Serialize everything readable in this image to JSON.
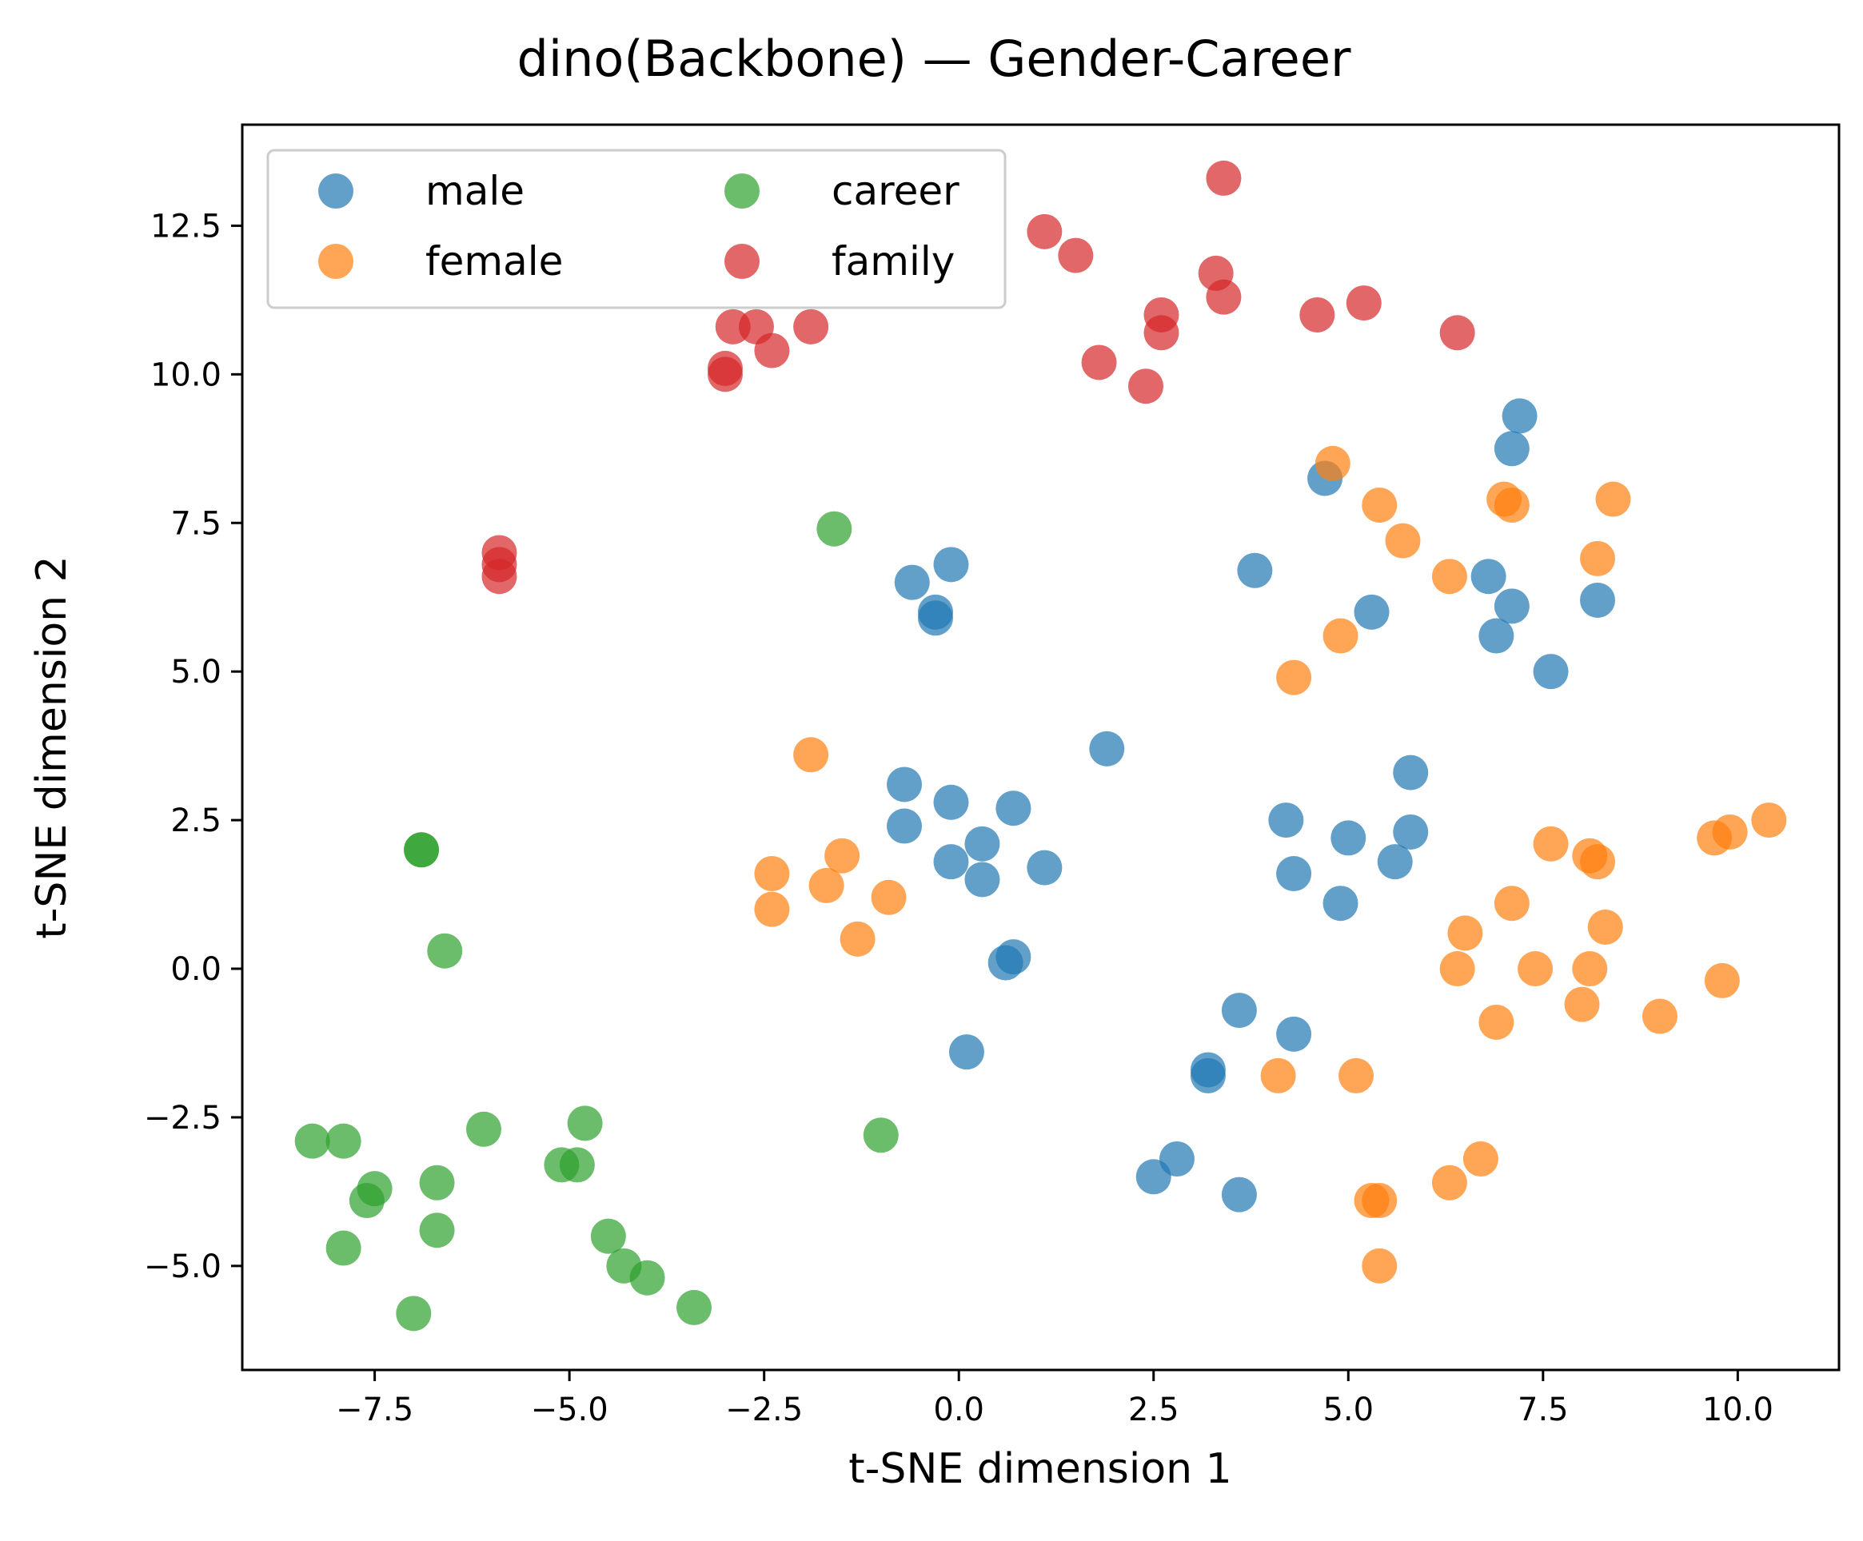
{
  "chart_data": {
    "type": "scatter",
    "title": "dino(Backbone) — Gender-Career",
    "xlabel": "t-SNE dimension 1",
    "ylabel": "t-SNE dimension 2",
    "xlim": [
      -9.2,
      11.3
    ],
    "ylim": [
      -6.75,
      14.2
    ],
    "xticks": [
      -7.5,
      -5.0,
      -2.5,
      0.0,
      2.5,
      5.0,
      7.5,
      10.0
    ],
    "xtick_labels": [
      "−7.5",
      "−5.0",
      "−2.5",
      "0.0",
      "2.5",
      "5.0",
      "7.5",
      "10.0"
    ],
    "yticks": [
      -5.0,
      -2.5,
      0.0,
      2.5,
      5.0,
      7.5,
      10.0,
      12.5
    ],
    "ytick_labels": [
      "−5.0",
      "−2.5",
      "0.0",
      "2.5",
      "5.0",
      "7.5",
      "10.0",
      "12.5"
    ],
    "grid": false,
    "legend": {
      "position": "top-left",
      "columns": 2
    },
    "series": [
      {
        "name": "male",
        "color": "#1f77b4",
        "points": [
          [
            7.2,
            9.3
          ],
          [
            7.1,
            8.75
          ],
          [
            4.7,
            8.25
          ],
          [
            -0.1,
            6.8
          ],
          [
            -0.6,
            6.5
          ],
          [
            -0.3,
            6.0
          ],
          [
            -0.3,
            5.9
          ],
          [
            3.8,
            6.7
          ],
          [
            5.3,
            6.0
          ],
          [
            6.8,
            6.6
          ],
          [
            7.1,
            6.1
          ],
          [
            6.9,
            5.6
          ],
          [
            8.2,
            6.2
          ],
          [
            7.6,
            5.0
          ],
          [
            1.9,
            3.7
          ],
          [
            5.8,
            3.3
          ],
          [
            -0.7,
            3.1
          ],
          [
            -0.1,
            2.8
          ],
          [
            0.7,
            2.7
          ],
          [
            -0.7,
            2.4
          ],
          [
            0.3,
            2.1
          ],
          [
            -0.1,
            1.8
          ],
          [
            0.3,
            1.5
          ],
          [
            1.1,
            1.7
          ],
          [
            4.2,
            2.5
          ],
          [
            5.0,
            2.2
          ],
          [
            5.8,
            2.3
          ],
          [
            5.6,
            1.8
          ],
          [
            4.3,
            1.6
          ],
          [
            4.9,
            1.1
          ],
          [
            0.7,
            0.2
          ],
          [
            0.6,
            0.1
          ],
          [
            0.1,
            -1.4
          ],
          [
            3.6,
            -0.7
          ],
          [
            4.3,
            -1.1
          ],
          [
            3.2,
            -1.7
          ],
          [
            3.2,
            -1.8
          ],
          [
            2.8,
            -3.2
          ],
          [
            2.5,
            -3.5
          ],
          [
            3.6,
            -3.8
          ]
        ]
      },
      {
        "name": "female",
        "color": "#ff7f0e",
        "points": [
          [
            4.8,
            8.5
          ],
          [
            5.4,
            7.8
          ],
          [
            5.7,
            7.2
          ],
          [
            7.0,
            7.9
          ],
          [
            7.1,
            7.8
          ],
          [
            8.4,
            7.9
          ],
          [
            8.2,
            6.9
          ],
          [
            6.3,
            6.6
          ],
          [
            4.9,
            5.6
          ],
          [
            4.3,
            4.9
          ],
          [
            -1.9,
            3.6
          ],
          [
            -2.4,
            1.6
          ],
          [
            -1.5,
            1.9
          ],
          [
            -1.7,
            1.4
          ],
          [
            -0.9,
            1.2
          ],
          [
            -2.4,
            1.0
          ],
          [
            -1.3,
            0.5
          ],
          [
            7.6,
            2.1
          ],
          [
            8.1,
            1.9
          ],
          [
            8.2,
            1.8
          ],
          [
            9.7,
            2.2
          ],
          [
            9.9,
            2.3
          ],
          [
            10.4,
            2.5
          ],
          [
            7.1,
            1.1
          ],
          [
            6.5,
            0.6
          ],
          [
            8.3,
            0.7
          ],
          [
            6.4,
            0.0
          ],
          [
            7.4,
            0.0
          ],
          [
            8.1,
            0.0
          ],
          [
            9.8,
            -0.2
          ],
          [
            8.0,
            -0.6
          ],
          [
            6.9,
            -0.9
          ],
          [
            9.0,
            -0.8
          ],
          [
            4.1,
            -1.8
          ],
          [
            5.1,
            -1.8
          ],
          [
            6.7,
            -3.2
          ],
          [
            6.3,
            -3.6
          ],
          [
            5.3,
            -3.9
          ],
          [
            5.4,
            -3.9
          ],
          [
            5.4,
            -5.0
          ]
        ]
      },
      {
        "name": "career",
        "color": "#2ca02c",
        "points": [
          [
            -1.6,
            7.4
          ],
          [
            -6.9,
            2.0
          ],
          [
            -6.9,
            2.0
          ],
          [
            -6.6,
            0.3
          ],
          [
            -1.0,
            -2.8
          ],
          [
            -6.1,
            -2.7
          ],
          [
            -4.8,
            -2.6
          ],
          [
            -8.3,
            -2.9
          ],
          [
            -7.9,
            -2.9
          ],
          [
            -5.1,
            -3.3
          ],
          [
            -4.9,
            -3.3
          ],
          [
            -6.7,
            -3.6
          ],
          [
            -7.5,
            -3.7
          ],
          [
            -7.6,
            -3.9
          ],
          [
            -6.7,
            -4.4
          ],
          [
            -7.9,
            -4.7
          ],
          [
            -4.5,
            -4.5
          ],
          [
            -4.3,
            -5.0
          ],
          [
            -4.0,
            -5.2
          ],
          [
            -3.4,
            -5.7
          ],
          [
            -7.0,
            -5.8
          ]
        ]
      },
      {
        "name": "family",
        "color": "#d62728",
        "points": [
          [
            3.4,
            13.3
          ],
          [
            1.1,
            12.4
          ],
          [
            1.5,
            12.0
          ],
          [
            3.3,
            11.7
          ],
          [
            3.4,
            11.3
          ],
          [
            2.6,
            11.0
          ],
          [
            2.6,
            10.7
          ],
          [
            4.6,
            11.0
          ],
          [
            5.2,
            11.2
          ],
          [
            6.4,
            10.7
          ],
          [
            1.8,
            10.2
          ],
          [
            2.4,
            9.8
          ],
          [
            -2.9,
            10.8
          ],
          [
            -2.6,
            10.8
          ],
          [
            -1.9,
            10.8
          ],
          [
            -2.4,
            10.4
          ],
          [
            -3.0,
            10.1
          ],
          [
            -3.0,
            10.0
          ],
          [
            -5.9,
            7.0
          ],
          [
            -5.9,
            6.8
          ],
          [
            -5.9,
            6.6
          ]
        ]
      }
    ]
  }
}
